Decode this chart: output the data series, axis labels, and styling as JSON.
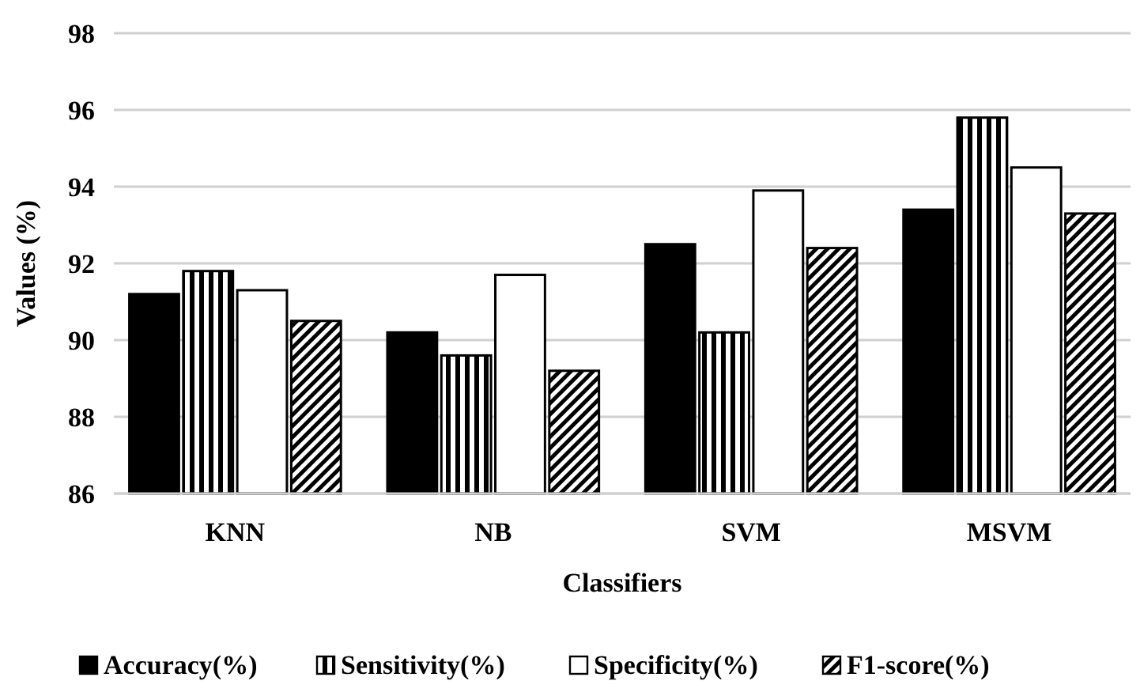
{
  "chart_data": {
    "type": "bar",
    "xlabel": "Classifiers",
    "ylabel": "Values (%)",
    "categories": [
      "KNN",
      "NB",
      "SVM",
      "MSVM"
    ],
    "series": [
      {
        "name": "Accuracy(%)",
        "color": "#000000",
        "values": [
          91.2,
          90.2,
          92.5,
          93.4
        ]
      },
      {
        "name": "Sensitivity(%)",
        "color": "#000000",
        "values": [
          91.8,
          89.6,
          90.2,
          95.8
        ]
      },
      {
        "name": "Specificity(%)",
        "color": "#ffffff",
        "values": [
          91.3,
          91.7,
          93.9,
          94.5
        ]
      },
      {
        "name": "F1-score(%)",
        "color": "#000000",
        "values": [
          90.5,
          89.2,
          92.4,
          93.3
        ]
      }
    ],
    "ylim": [
      86,
      98
    ],
    "yticks": [
      86,
      88,
      90,
      92,
      94,
      96,
      98
    ],
    "grid": "y",
    "legend": "bottom"
  }
}
